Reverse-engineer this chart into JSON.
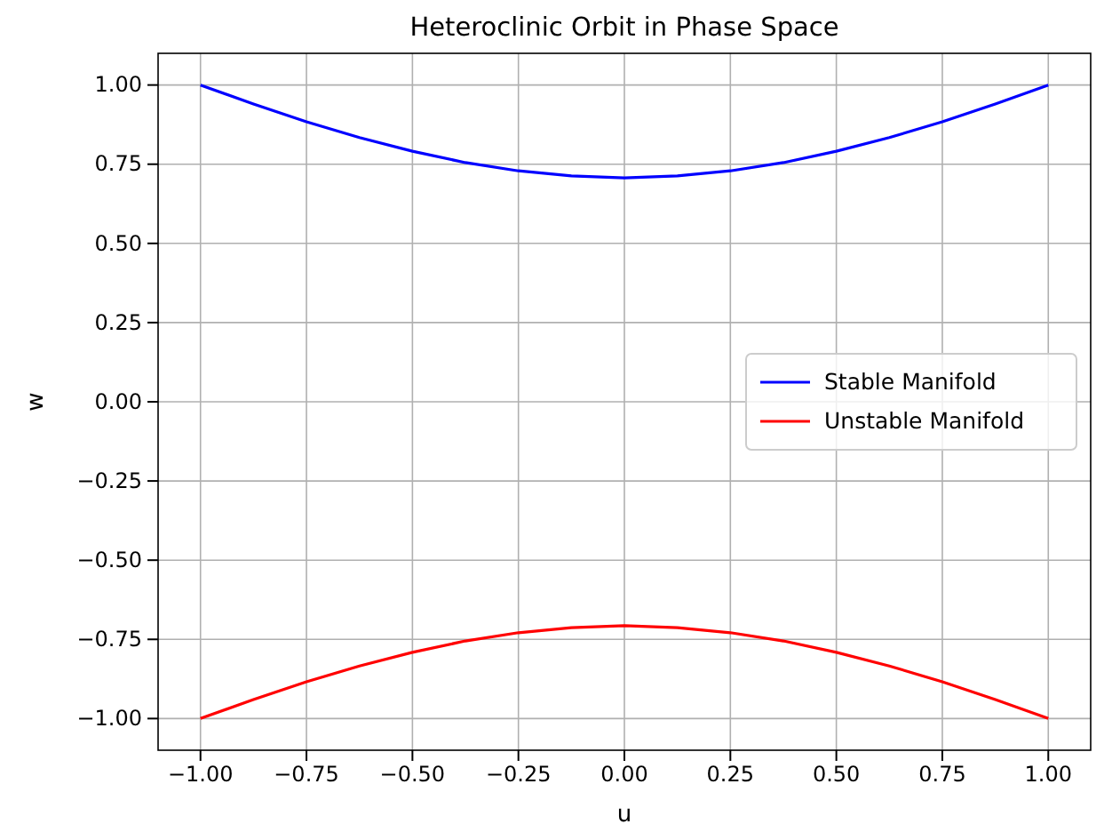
{
  "chart_data": {
    "type": "line",
    "title": "Heteroclinic Orbit in Phase Space",
    "xlabel": "u",
    "ylabel": "w",
    "x": [
      -1,
      -0.875,
      -0.75,
      -0.625,
      -0.5,
      -0.375,
      -0.25,
      -0.125,
      0,
      0.125,
      0.25,
      0.375,
      0.5,
      0.625,
      0.75,
      0.875,
      1
    ],
    "series": [
      {
        "name": "Stable Manifold",
        "color": "#0000ff",
        "values": [
          1,
          0.94,
          0.884,
          0.834,
          0.791,
          0.755,
          0.729,
          0.713,
          0.707,
          0.713,
          0.729,
          0.755,
          0.791,
          0.834,
          0.884,
          0.94,
          1
        ]
      },
      {
        "name": "Unstable Manifold",
        "color": "#ff0000",
        "values": [
          -1,
          -0.94,
          -0.884,
          -0.834,
          -0.791,
          -0.755,
          -0.729,
          -0.713,
          -0.707,
          -0.713,
          -0.729,
          -0.755,
          -0.791,
          -0.834,
          -0.884,
          -0.94,
          -1
        ]
      }
    ],
    "xlim": [
      -1.1,
      1.1
    ],
    "ylim": [
      -1.1,
      1.1
    ],
    "xticks": [
      {
        "value": -1,
        "label": "−1.00"
      },
      {
        "value": -0.75,
        "label": "−0.75"
      },
      {
        "value": -0.5,
        "label": "−0.50"
      },
      {
        "value": -0.25,
        "label": "−0.25"
      },
      {
        "value": 0,
        "label": "0.00"
      },
      {
        "value": 0.25,
        "label": "0.25"
      },
      {
        "value": 0.5,
        "label": "0.50"
      },
      {
        "value": 0.75,
        "label": "0.75"
      },
      {
        "value": 1,
        "label": "1.00"
      }
    ],
    "yticks": [
      {
        "value": -1,
        "label": "−1.00"
      },
      {
        "value": -0.75,
        "label": "−0.75"
      },
      {
        "value": -0.5,
        "label": "−0.50"
      },
      {
        "value": -0.25,
        "label": "−0.25"
      },
      {
        "value": 0,
        "label": "0.00"
      },
      {
        "value": 0.25,
        "label": "0.25"
      },
      {
        "value": 0.5,
        "label": "0.50"
      },
      {
        "value": 0.75,
        "label": "0.75"
      },
      {
        "value": 1,
        "label": "1.00"
      }
    ],
    "grid": true,
    "legend": "right",
    "line_style": "solid",
    "marker": "none"
  }
}
